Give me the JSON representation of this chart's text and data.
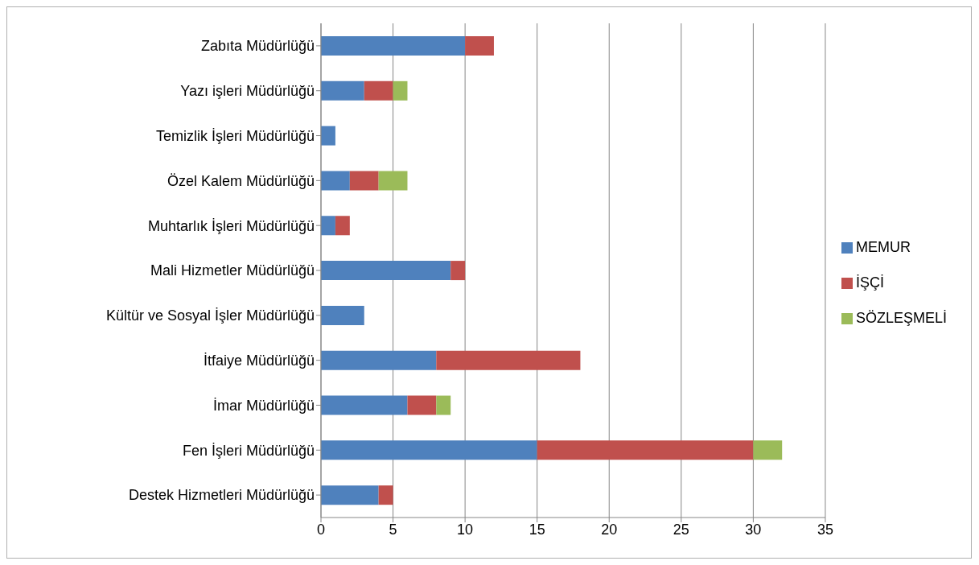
{
  "chart_data": {
    "type": "bar",
    "orientation": "horizontal",
    "stacked": true,
    "categories": [
      "Zabıta Müdürlüğü",
      "Yazı işleri Müdürlüğü",
      "Temizlik İşleri Müdürlüğü",
      "Özel Kalem Müdürlüğü",
      "Muhtarlık İşleri Müdürlüğü",
      "Mali Hizmetler Müdürlüğü",
      "Kültür ve Sosyal İşler Müdürlüğü",
      "İtfaiye Müdürlüğü",
      "İmar Müdürlüğü",
      "Fen İşleri Müdürlüğü",
      "Destek Hizmetleri Müdürlüğü"
    ],
    "series": [
      {
        "name": "MEMUR",
        "color": "#4f81bd",
        "values": [
          10,
          3,
          1,
          2,
          1,
          9,
          3,
          8,
          6,
          15,
          4
        ]
      },
      {
        "name": "İŞÇİ",
        "color": "#c0504d",
        "values": [
          2,
          2,
          0,
          2,
          1,
          1,
          0,
          10,
          2,
          15,
          1
        ]
      },
      {
        "name": "SÖZLEŞMELİ",
        "color": "#9bbb59",
        "values": [
          0,
          1,
          0,
          2,
          0,
          0,
          0,
          0,
          1,
          2,
          0
        ]
      }
    ],
    "xlim": [
      0,
      35
    ],
    "xticks": [
      0,
      5,
      10,
      15,
      20,
      25,
      30,
      35
    ],
    "grid": "x",
    "legend": "right"
  }
}
